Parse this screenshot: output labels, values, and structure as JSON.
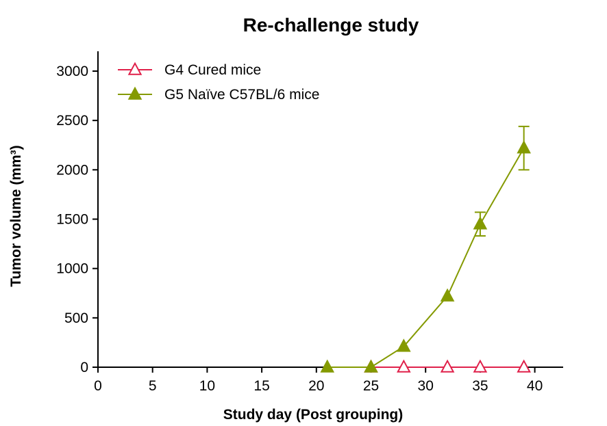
{
  "chart_data": {
    "type": "line",
    "title": "Re-challenge study",
    "xlabel": "Study day (Post grouping)",
    "ylabel": "Tumor volume (mm³)",
    "xlim": [
      0,
      43
    ],
    "ylim": [
      0,
      3000
    ],
    "xticks": [
      0,
      5,
      10,
      15,
      20,
      25,
      30,
      35,
      40
    ],
    "yticks": [
      0,
      500,
      1000,
      1500,
      2000,
      2500,
      3000
    ],
    "grid": false,
    "legend_position": "top-left",
    "series": [
      {
        "name": "G4 Cured mice",
        "color": "#e0204a",
        "marker": "triangle-open",
        "x": [
          25,
          28,
          32,
          35,
          39
        ],
        "y": [
          0,
          0,
          0,
          0,
          0
        ],
        "error": [
          0,
          0,
          0,
          0,
          0
        ]
      },
      {
        "name": "G5 Naïve C57BL/6 mice",
        "color": "#849a00",
        "marker": "triangle-filled",
        "x": [
          21,
          25,
          28,
          32,
          35,
          39
        ],
        "y": [
          0,
          0,
          210,
          720,
          1450,
          2220
        ],
        "error": [
          0,
          0,
          0,
          0,
          120,
          220
        ]
      }
    ]
  }
}
